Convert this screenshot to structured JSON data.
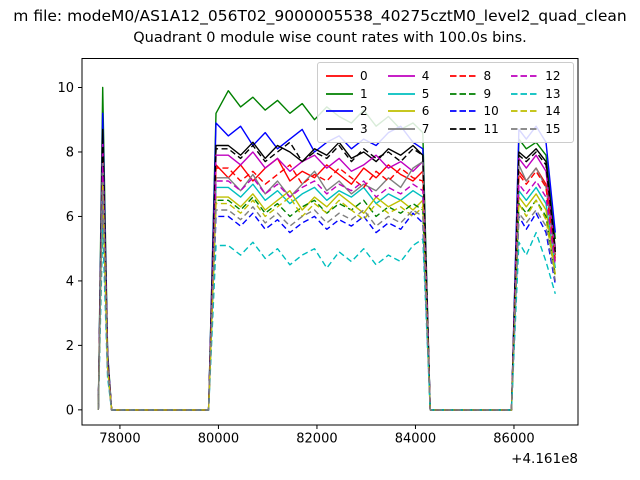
{
  "figure": {
    "title_top": "m file: modeM0/AS1A12_056T02_9000005538_40275cztM0_level2_quad_clean",
    "subtitle": "Quadrant 0 module wise count rates with 100.0s bins."
  },
  "chart_data": {
    "type": "line",
    "title": "Quadrant 0 module wise count rates with 100.0s bins.",
    "xlabel": "",
    "ylabel": "",
    "x_axis_offset": "+4.161e8",
    "xlim": [
      77230,
      87300
    ],
    "ylim": [
      -0.47,
      10.9
    ],
    "grid": false,
    "legend_position": "upper right",
    "legend_columns": 4,
    "x_ticks": [
      "78000",
      "80000",
      "82000",
      "84000",
      "86000"
    ],
    "x_tick_values": [
      78000,
      80000,
      82000,
      84000,
      86000
    ],
    "y_ticks": [
      "0",
      "2",
      "4",
      "6",
      "8",
      "10"
    ],
    "y_tick_values": [
      0,
      2,
      4,
      6,
      8,
      10
    ],
    "x": [
      77560,
      77650,
      77750,
      77830,
      79800,
      79950,
      80200,
      80450,
      80700,
      80950,
      81200,
      81450,
      81700,
      81950,
      82200,
      82450,
      82700,
      82950,
      83200,
      83450,
      83700,
      83950,
      84150,
      84300,
      85950,
      86100,
      86250,
      86450,
      86650,
      86840
    ],
    "series": [
      {
        "label": "0",
        "color": "#ff0000",
        "linestyle": "solid",
        "values": [
          0,
          8.0,
          1.5,
          0,
          0,
          7.6,
          7.2,
          7.6,
          7.1,
          7.5,
          7.8,
          7.1,
          7.4,
          7.2,
          7.6,
          7.3,
          7.0,
          7.5,
          7.2,
          7.6,
          7.3,
          7.1,
          7.4,
          0,
          0,
          7.4,
          7.1,
          7.5,
          7.0,
          4.8
        ]
      },
      {
        "label": "1",
        "color": "#008000",
        "linestyle": "solid",
        "values": [
          0,
          10.0,
          1.8,
          0,
          0,
          9.2,
          9.9,
          9.4,
          9.7,
          9.3,
          9.6,
          9.2,
          9.5,
          9.0,
          9.4,
          9.1,
          8.9,
          9.3,
          8.8,
          9.1,
          8.7,
          8.9,
          8.6,
          0,
          0,
          8.4,
          8.1,
          8.3,
          7.9,
          5.3
        ]
      },
      {
        "label": "2",
        "color": "#0000ff",
        "linestyle": "solid",
        "values": [
          0,
          9.2,
          1.7,
          0,
          0,
          8.9,
          8.5,
          8.8,
          8.2,
          8.6,
          8.1,
          8.4,
          8.7,
          8.0,
          8.3,
          8.5,
          8.1,
          8.4,
          8.2,
          8.6,
          8.8,
          8.3,
          8.1,
          0,
          0,
          8.7,
          8.4,
          8.8,
          8.3,
          5.5
        ]
      },
      {
        "label": "3",
        "color": "#000000",
        "linestyle": "solid",
        "values": [
          0,
          8.7,
          1.6,
          0,
          0,
          8.2,
          8.2,
          7.9,
          8.3,
          7.8,
          8.2,
          8.0,
          7.7,
          8.1,
          7.9,
          8.3,
          7.8,
          8.0,
          7.7,
          8.1,
          7.9,
          8.2,
          7.9,
          0,
          0,
          8.0,
          7.8,
          8.1,
          7.7,
          5.0
        ]
      },
      {
        "label": "4",
        "color": "#bf00bf",
        "linestyle": "solid",
        "values": [
          0,
          8.3,
          1.6,
          0,
          0,
          7.9,
          7.9,
          7.6,
          8.0,
          7.5,
          7.8,
          7.4,
          7.7,
          7.9,
          7.5,
          7.8,
          7.4,
          7.6,
          7.9,
          7.5,
          7.7,
          7.4,
          7.7,
          0,
          0,
          7.8,
          7.5,
          7.9,
          7.4,
          4.9
        ]
      },
      {
        "label": "5",
        "color": "#00bfbf",
        "linestyle": "solid",
        "values": [
          0,
          7.5,
          1.4,
          0,
          0,
          6.9,
          6.9,
          6.6,
          7.0,
          6.5,
          6.8,
          6.4,
          6.7,
          6.9,
          6.5,
          6.8,
          6.6,
          6.9,
          6.4,
          6.7,
          6.5,
          6.8,
          6.6,
          0,
          0,
          6.8,
          6.5,
          6.9,
          6.4,
          4.4
        ]
      },
      {
        "label": "6",
        "color": "#bfbf00",
        "linestyle": "solid",
        "values": [
          0,
          7.2,
          1.3,
          0,
          0,
          6.6,
          6.6,
          6.3,
          6.7,
          6.2,
          6.5,
          6.8,
          6.2,
          6.6,
          6.3,
          6.7,
          6.4,
          6.1,
          6.6,
          6.3,
          6.5,
          6.2,
          6.5,
          0,
          0,
          6.6,
          6.3,
          6.7,
          6.2,
          4.2
        ]
      },
      {
        "label": "7",
        "color": "#7f7f7f",
        "linestyle": "solid",
        "values": [
          0,
          7.8,
          1.5,
          0,
          0,
          7.2,
          7.2,
          6.8,
          7.3,
          6.7,
          7.1,
          6.6,
          7.0,
          7.4,
          6.8,
          7.1,
          6.7,
          7.0,
          6.8,
          7.2,
          6.9,
          7.5,
          7.7,
          0,
          0,
          7.6,
          7.1,
          7.5,
          6.9,
          4.7
        ]
      },
      {
        "label": "8",
        "color": "#ff0000",
        "linestyle": "dashed",
        "values": [
          0,
          7.9,
          1.5,
          0,
          0,
          7.5,
          7.5,
          7.1,
          7.4,
          7.0,
          7.3,
          7.6,
          7.0,
          7.3,
          7.1,
          7.5,
          7.2,
          6.9,
          7.4,
          7.1,
          7.5,
          7.2,
          7.1,
          0,
          0,
          7.3,
          7.0,
          7.4,
          6.9,
          4.6
        ]
      },
      {
        "label": "9",
        "color": "#008000",
        "linestyle": "dashed",
        "values": [
          0,
          7.0,
          1.3,
          0,
          0,
          6.5,
          6.5,
          6.2,
          6.6,
          6.1,
          6.4,
          6.0,
          6.3,
          6.5,
          6.1,
          6.4,
          6.2,
          6.5,
          6.0,
          6.3,
          6.1,
          6.4,
          6.2,
          0,
          0,
          6.4,
          6.1,
          6.5,
          6.0,
          4.1
        ]
      },
      {
        "label": "10",
        "color": "#0000ff",
        "linestyle": "dashed",
        "values": [
          0,
          6.5,
          1.2,
          0,
          0,
          6.0,
          6.0,
          5.7,
          6.1,
          5.6,
          5.9,
          5.5,
          5.8,
          6.0,
          5.6,
          5.9,
          5.7,
          6.0,
          5.5,
          5.8,
          5.6,
          6.1,
          5.8,
          0,
          0,
          6.0,
          5.6,
          6.1,
          5.5,
          3.9
        ]
      },
      {
        "label": "11",
        "color": "#000000",
        "linestyle": "dashed",
        "values": [
          0,
          8.5,
          1.6,
          0,
          0,
          8.1,
          8.1,
          7.8,
          8.2,
          7.7,
          8.0,
          8.3,
          7.7,
          8.0,
          7.8,
          8.2,
          7.7,
          8.1,
          7.8,
          8.0,
          7.7,
          8.1,
          7.9,
          0,
          0,
          7.9,
          7.7,
          8.0,
          7.6,
          4.9
        ]
      },
      {
        "label": "12",
        "color": "#bf00bf",
        "linestyle": "dashed",
        "values": [
          0,
          7.6,
          1.4,
          0,
          0,
          7.1,
          7.1,
          6.8,
          7.2,
          6.7,
          7.0,
          6.6,
          6.9,
          7.1,
          6.7,
          7.0,
          6.8,
          7.1,
          6.6,
          6.9,
          6.7,
          7.0,
          6.8,
          0,
          0,
          7.0,
          6.7,
          7.1,
          6.6,
          4.5
        ]
      },
      {
        "label": "13",
        "color": "#00bfbf",
        "linestyle": "dashed",
        "values": [
          0,
          5.6,
          1.0,
          0,
          0,
          5.1,
          5.1,
          4.8,
          5.2,
          4.7,
          5.0,
          4.5,
          4.8,
          5.0,
          4.4,
          4.9,
          4.6,
          5.0,
          4.5,
          4.8,
          4.6,
          5.1,
          5.3,
          0,
          0,
          5.2,
          4.8,
          5.5,
          4.6,
          3.6
        ]
      },
      {
        "label": "14",
        "color": "#bfbf00",
        "linestyle": "dashed",
        "values": [
          0,
          7.0,
          1.3,
          0,
          0,
          6.4,
          6.4,
          6.1,
          6.5,
          6.0,
          6.3,
          6.6,
          6.0,
          6.4,
          6.1,
          6.5,
          6.2,
          5.9,
          6.4,
          6.1,
          6.3,
          6.0,
          6.3,
          0,
          0,
          6.4,
          6.0,
          6.5,
          5.9,
          4.2
        ]
      },
      {
        "label": "15",
        "color": "#7f7f7f",
        "linestyle": "dashed",
        "values": [
          0,
          6.8,
          1.2,
          0,
          0,
          6.2,
          6.2,
          5.9,
          6.3,
          5.8,
          6.1,
          5.7,
          6.0,
          6.2,
          5.8,
          6.1,
          5.9,
          6.2,
          5.7,
          6.0,
          5.8,
          6.2,
          6.0,
          0,
          0,
          6.1,
          5.8,
          6.2,
          5.7,
          4.0
        ]
      }
    ]
  }
}
